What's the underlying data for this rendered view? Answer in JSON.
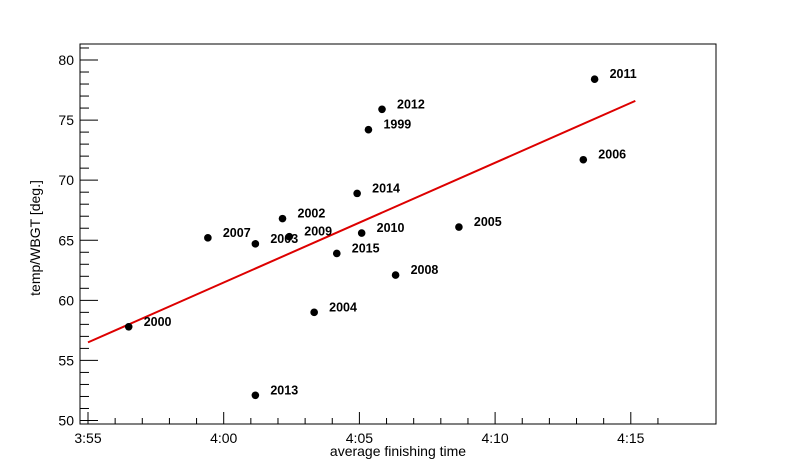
{
  "chart_data": {
    "type": "scatter",
    "title": "",
    "xlabel": "average finishing time",
    "ylabel": "temp/WBGT [deg.]",
    "xlim": [
      "3:55",
      "4:15"
    ],
    "ylim": [
      50,
      80
    ],
    "x_ticks": [
      "3:55",
      "4:00",
      "4:05",
      "4:10",
      "4:15"
    ],
    "y_ticks": [
      50,
      55,
      60,
      65,
      70,
      75,
      80
    ],
    "grid": false,
    "legend": "none",
    "points": [
      {
        "label": "1999",
        "x": "4:05:20",
        "y": 74.2
      },
      {
        "label": "2000",
        "x": "3:56:30",
        "y": 57.8
      },
      {
        "label": "2002",
        "x": "4:02:10",
        "y": 66.8
      },
      {
        "label": "2003",
        "x": "4:01:10",
        "y": 64.7
      },
      {
        "label": "2004",
        "x": "4:03:20",
        "y": 59.0
      },
      {
        "label": "2005",
        "x": "4:08:40",
        "y": 66.1
      },
      {
        "label": "2006",
        "x": "4:13:15",
        "y": 71.7
      },
      {
        "label": "2007",
        "x": "3:59:25",
        "y": 65.2
      },
      {
        "label": "2008",
        "x": "4:06:20",
        "y": 62.1
      },
      {
        "label": "2009",
        "x": "4:02:25",
        "y": 65.3
      },
      {
        "label": "2010",
        "x": "4:05:05",
        "y": 65.6
      },
      {
        "label": "2011",
        "x": "4:13:40",
        "y": 78.4
      },
      {
        "label": "2012",
        "x": "4:05:50",
        "y": 75.9
      },
      {
        "label": "2013",
        "x": "4:01:10",
        "y": 52.1
      },
      {
        "label": "2014",
        "x": "4:04:55",
        "y": 68.9
      },
      {
        "label": "2015",
        "x": "4:04:10",
        "y": 63.9
      }
    ],
    "fit_line": {
      "color": "#dd0000",
      "start": {
        "x": "3:55",
        "y": 56.5
      },
      "end": {
        "x": "4:15:10",
        "y": 76.6
      }
    },
    "marker_color": "#000000"
  }
}
